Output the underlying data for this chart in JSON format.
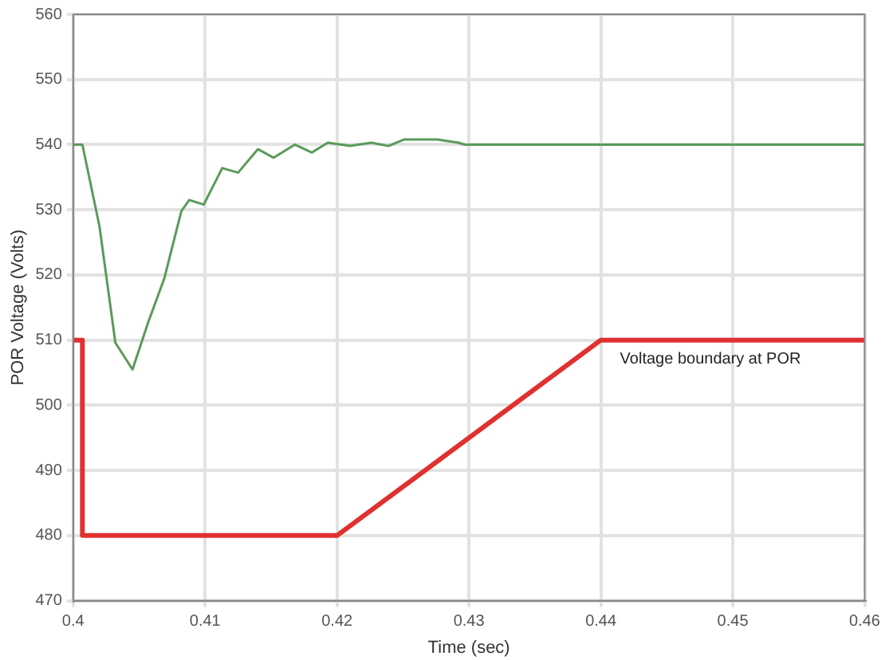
{
  "chart_data": {
    "type": "line",
    "xlabel": "Time (sec)",
    "ylabel": "POR Voltage (Volts)",
    "xlim": [
      0.4,
      0.46
    ],
    "xticks": [
      0.4,
      0.41,
      0.42,
      0.43,
      0.44,
      0.45,
      0.46
    ],
    "ylim": [
      470,
      560
    ],
    "yticks": [
      470,
      480,
      490,
      500,
      510,
      520,
      530,
      540,
      550,
      560
    ],
    "grid": true,
    "legend": false,
    "series": [
      {
        "color": "#5a9a5a",
        "x": [
          0.4,
          0.4007,
          0.402,
          0.4032,
          0.4045,
          0.4057,
          0.4069,
          0.4082,
          0.4088,
          0.4099,
          0.4113,
          0.4125,
          0.414,
          0.4152,
          0.4168,
          0.4181,
          0.4193,
          0.421,
          0.4226,
          0.4239,
          0.4251,
          0.4276,
          0.4292,
          0.4297,
          0.46
        ],
        "values": [
          540,
          540,
          527.4,
          509.6,
          505.5,
          512.8,
          519.4,
          529.8,
          531.5,
          530.8,
          536.4,
          535.7,
          539.3,
          538,
          540,
          538.8,
          540.3,
          539.8,
          540.3,
          539.8,
          540.8,
          540.8,
          540.3,
          540,
          540
        ]
      },
      {
        "name": "Voltage boundary at POR",
        "color": "#e03030",
        "x": [
          0.4,
          0.4007,
          0.4007,
          0.42,
          0.44,
          0.46
        ],
        "values": [
          510,
          510,
          480,
          480,
          510,
          510
        ]
      }
    ]
  }
}
